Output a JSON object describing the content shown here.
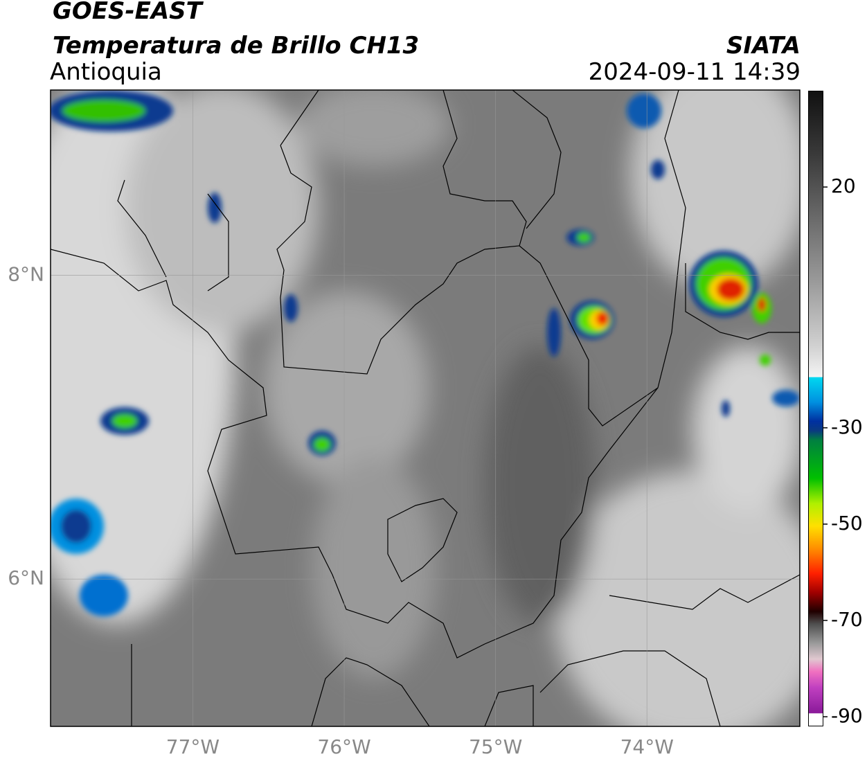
{
  "chart_data": {
    "type": "map",
    "title": "GOES-EAST",
    "subtitle": "Temperatura de Brillo CH13",
    "region": "Antioquia",
    "source": "SIATA",
    "datetime": "2024-09-11 14:39",
    "xlim": [
      -77.94,
      -72.99
    ],
    "ylim": [
      5.03,
      9.22
    ],
    "xticks": [
      {
        "value": -77,
        "label": "77°W"
      },
      {
        "value": -76,
        "label": "76°W"
      },
      {
        "value": -75,
        "label": "75°W"
      },
      {
        "value": -74,
        "label": "74°W"
      }
    ],
    "yticks": [
      {
        "value": 8,
        "label": "8°N"
      },
      {
        "value": 6,
        "label": "6°N"
      }
    ],
    "grid": true,
    "colorbar": {
      "lim": [
        -92,
        40
      ],
      "ticks": [
        20,
        -30,
        -50,
        -70,
        -90
      ]
    }
  }
}
